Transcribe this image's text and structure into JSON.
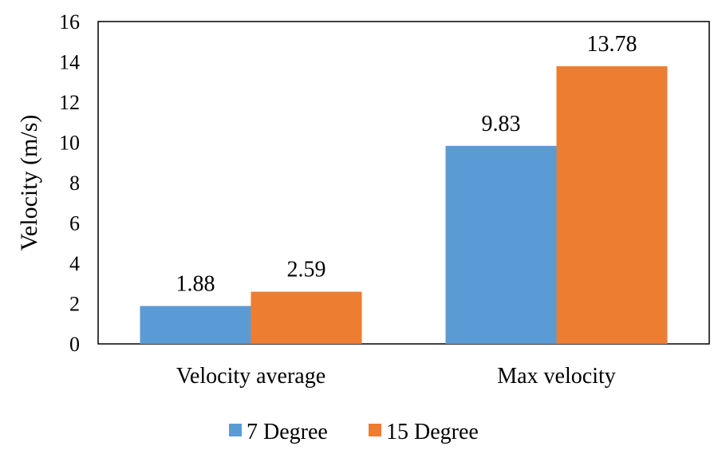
{
  "chart_data": {
    "type": "bar",
    "title": "",
    "xlabel": "",
    "ylabel": "Velocity (m/s)",
    "ylim": [
      0,
      16
    ],
    "yticks": [
      0,
      2,
      4,
      6,
      8,
      10,
      12,
      14,
      16
    ],
    "categories": [
      "Velocity average",
      "Max velocity"
    ],
    "series": [
      {
        "name": "7 Degree",
        "color": "#5B9BD5",
        "values": [
          1.88,
          9.83
        ],
        "labels": [
          "1.88",
          "9.83"
        ]
      },
      {
        "name": "15 Degree",
        "color": "#ED7D31",
        "values": [
          2.59,
          13.78
        ],
        "labels": [
          "2.59",
          "13.78"
        ]
      }
    ],
    "grid": false,
    "legend": "bottom",
    "data_labels": true
  }
}
